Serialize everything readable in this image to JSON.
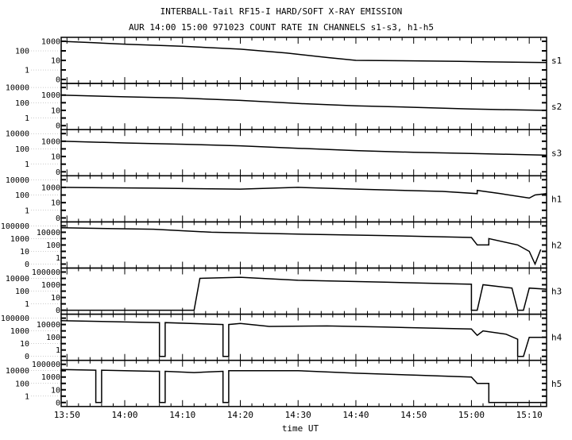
{
  "chart_data": {
    "type": "line",
    "title": "INTERBALL-Tail RF15-I HARD/SOFT X-RAY EMISSION",
    "subtitle": "AUR 14:00 15:00 971023  COUNT RATE IN CHANNELS s1-s3, h1-h5",
    "xlabel": "time UT",
    "xlim": [
      "13:49",
      "15:13"
    ],
    "xticks": [
      "13:50",
      "14:00",
      "14:10",
      "14:20",
      "14:30",
      "14:40",
      "14:50",
      "15:00",
      "15:10"
    ],
    "yscale": "log (with 0 at bottom)",
    "grid": false,
    "panels": [
      {
        "name": "s1",
        "yticks": [
          "1000",
          "100",
          "10",
          "1",
          "0"
        ],
        "points": [
          [
            "13:49",
            1000
          ],
          [
            "13:55",
            700
          ],
          [
            "14:00",
            500
          ],
          [
            "14:10",
            300
          ],
          [
            "14:20",
            150
          ],
          [
            "14:28",
            60
          ],
          [
            "14:35",
            20
          ],
          [
            "14:40",
            10
          ],
          [
            "14:50",
            9
          ],
          [
            "14:58",
            8
          ],
          [
            "15:03",
            7
          ],
          [
            "15:13",
            6
          ]
        ]
      },
      {
        "name": "s2",
        "yticks": [
          "10000",
          "1000",
          "100",
          "10",
          "1",
          "0"
        ],
        "points": [
          [
            "13:49",
            1000
          ],
          [
            "14:00",
            600
          ],
          [
            "14:10",
            400
          ],
          [
            "14:20",
            200
          ],
          [
            "14:30",
            80
          ],
          [
            "14:40",
            40
          ],
          [
            "14:50",
            25
          ],
          [
            "15:00",
            15
          ],
          [
            "15:13",
            10
          ]
        ]
      },
      {
        "name": "s3",
        "yticks": [
          "10000",
          "1000",
          "100",
          "10",
          "1",
          "0"
        ],
        "points": [
          [
            "13:49",
            1000
          ],
          [
            "14:00",
            600
          ],
          [
            "14:10",
            400
          ],
          [
            "14:20",
            250
          ],
          [
            "14:30",
            120
          ],
          [
            "14:40",
            60
          ],
          [
            "14:50",
            35
          ],
          [
            "15:00",
            25
          ],
          [
            "15:13",
            15
          ]
        ]
      },
      {
        "name": "h1",
        "yticks": [
          "10000",
          "1000",
          "100",
          "10",
          "1",
          "0"
        ],
        "points": [
          [
            "13:49",
            1000
          ],
          [
            "14:05",
            800
          ],
          [
            "14:20",
            600
          ],
          [
            "14:30",
            1000
          ],
          [
            "14:40",
            600
          ],
          [
            "14:55",
            300
          ],
          [
            "15:01",
            150
          ],
          [
            "15:01",
            400
          ],
          [
            "15:05",
            150
          ],
          [
            "15:10",
            40
          ],
          [
            "15:11",
            100
          ],
          [
            "15:13",
            150
          ]
        ]
      },
      {
        "name": "h2",
        "yticks": [
          "100000",
          "10000",
          "1000",
          "100",
          "10",
          "1",
          "0"
        ],
        "points": [
          [
            "13:49",
            50000
          ],
          [
            "14:05",
            30000
          ],
          [
            "14:15",
            10000
          ],
          [
            "14:30",
            5000
          ],
          [
            "14:45",
            3000
          ],
          [
            "15:00",
            1500
          ],
          [
            "15:01",
            100
          ],
          [
            "15:03",
            100
          ],
          [
            "15:03",
            1000
          ],
          [
            "15:08",
            100
          ],
          [
            "15:10",
            10
          ],
          [
            "15:11",
            0
          ],
          [
            "15:12",
            20
          ]
        ]
      },
      {
        "name": "h3",
        "yticks": [
          "100000",
          "10000",
          "1000",
          "100",
          "10",
          "1",
          "0"
        ],
        "points": [
          [
            "13:49",
            0
          ],
          [
            "14:12",
            0
          ],
          [
            "14:13",
            10000
          ],
          [
            "14:20",
            15000
          ],
          [
            "14:30",
            5000
          ],
          [
            "14:45",
            2500
          ],
          [
            "15:00",
            1200
          ],
          [
            "15:00",
            0
          ],
          [
            "15:01",
            0
          ],
          [
            "15:02",
            1000
          ],
          [
            "15:07",
            300
          ],
          [
            "15:08",
            0
          ],
          [
            "15:09",
            0
          ],
          [
            "15:10",
            300
          ],
          [
            "15:13",
            200
          ]
        ]
      },
      {
        "name": "h4",
        "yticks": [
          "100000",
          "10000",
          "1000",
          "100",
          "10",
          "1",
          "0"
        ],
        "points": [
          [
            "13:49",
            40000
          ],
          [
            "14:06",
            20000
          ],
          [
            "14:06",
            0
          ],
          [
            "14:07",
            0
          ],
          [
            "14:07",
            20000
          ],
          [
            "14:17",
            10000
          ],
          [
            "14:17",
            0
          ],
          [
            "14:18",
            0
          ],
          [
            "14:18",
            10000
          ],
          [
            "14:20",
            15000
          ],
          [
            "14:25",
            5000
          ],
          [
            "14:35",
            6000
          ],
          [
            "14:45",
            4000
          ],
          [
            "15:00",
            2000
          ],
          [
            "15:01",
            200
          ],
          [
            "15:02",
            1000
          ],
          [
            "15:06",
            300
          ],
          [
            "15:08",
            50
          ],
          [
            "15:08",
            0
          ],
          [
            "15:09",
            0
          ],
          [
            "15:10",
            100
          ],
          [
            "15:13",
            100
          ]
        ]
      },
      {
        "name": "h5",
        "yticks": [
          "100000",
          "10000",
          "1000",
          "100",
          "10",
          "1",
          "0"
        ],
        "points": [
          [
            "13:49",
            15000
          ],
          [
            "13:55",
            12000
          ],
          [
            "13:55",
            0
          ],
          [
            "13:56",
            0
          ],
          [
            "13:56",
            12000
          ],
          [
            "14:05",
            8000
          ],
          [
            "14:06",
            8000
          ],
          [
            "14:06",
            0
          ],
          [
            "14:07",
            0
          ],
          [
            "14:07",
            8000
          ],
          [
            "14:12",
            5000
          ],
          [
            "14:17",
            8000
          ],
          [
            "14:17",
            0
          ],
          [
            "14:18",
            0
          ],
          [
            "14:18",
            10000
          ],
          [
            "14:30",
            10000
          ],
          [
            "14:40",
            4000
          ],
          [
            "14:50",
            2000
          ],
          [
            "15:00",
            1000
          ],
          [
            "15:01",
            100
          ],
          [
            "15:03",
            100
          ],
          [
            "15:03",
            0
          ],
          [
            "15:07",
            0
          ],
          [
            "15:13",
            0
          ]
        ]
      }
    ]
  }
}
